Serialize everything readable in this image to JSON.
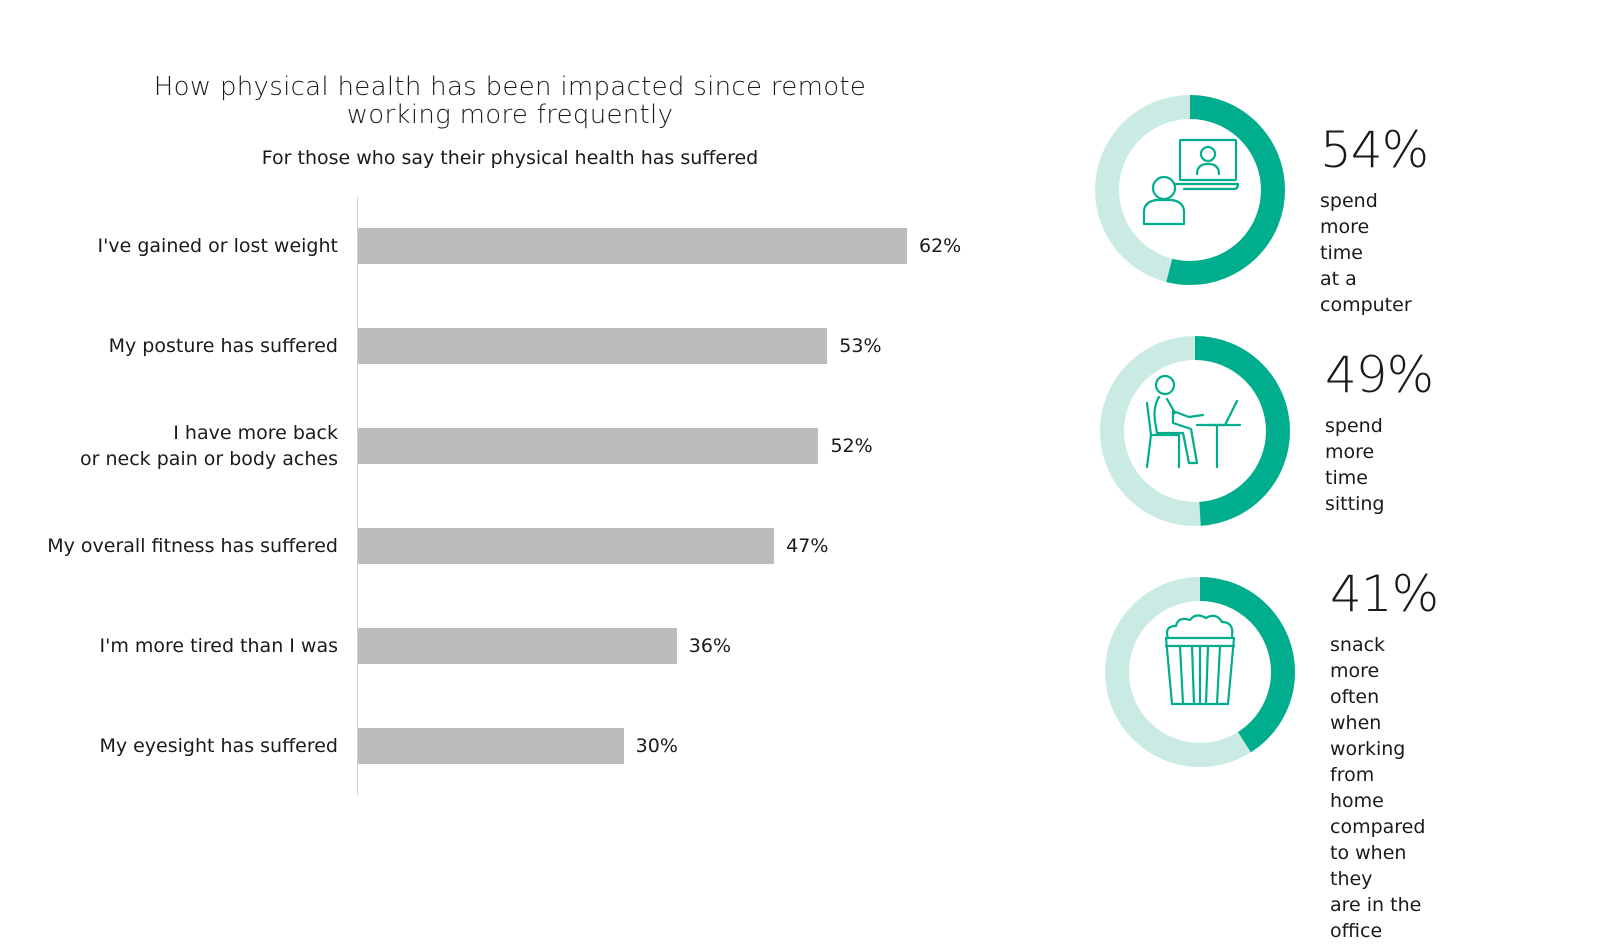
{
  "chart_data": {
    "type": "bar",
    "orientation": "horizontal",
    "title": "How physical health has been impacted since remote working more frequently",
    "subtitle": "For those who say their physical health has suffered",
    "categories": [
      "I've gained or lost weight",
      "My posture has suffered",
      "I have more back\nor neck pain or body aches",
      "My overall fitness has suffered",
      "I'm more tired than I was",
      "My eyesight has suffered"
    ],
    "values": [
      62,
      53,
      52,
      47,
      36,
      30
    ],
    "value_labels": [
      "62%",
      "53%",
      "52%",
      "47%",
      "36%",
      "30%"
    ],
    "xlim": [
      0,
      100
    ],
    "grid": false,
    "bar_color": "#bcbcbe"
  },
  "stats": [
    {
      "value": 54,
      "value_label": "54%",
      "description": "spend more time\nat a computer",
      "icon": "video-call-icon"
    },
    {
      "value": 49,
      "value_label": "49%",
      "description": "spend more\ntime sitting",
      "icon": "person-sitting-at-desk-icon"
    },
    {
      "value": 41,
      "value_label": "41%",
      "description": "snack more often when\nworking from home\ncompared to when they\nare in the office",
      "icon": "popcorn-icon"
    }
  ],
  "colors": {
    "accent": "#00ad8c",
    "accent_light": "#c9ebe3",
    "bar": "#bcbcbe",
    "axis": "#d0d0d0",
    "text": "#1a1a1a"
  }
}
